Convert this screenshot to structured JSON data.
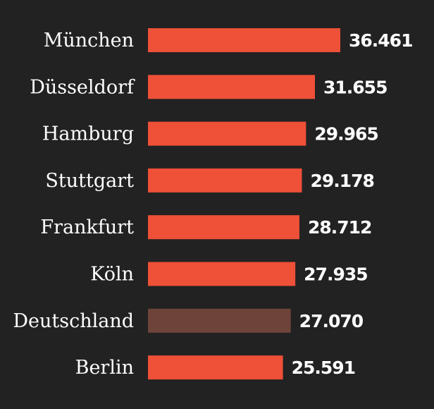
{
  "chart_data": {
    "type": "bar",
    "orientation": "horizontal",
    "categories": [
      "München",
      "Düsseldorf",
      "Hamburg",
      "Stuttgart",
      "Frankfurt",
      "Köln",
      "Deutschland",
      "Berlin"
    ],
    "values": [
      36461,
      31655,
      29965,
      29178,
      28712,
      27935,
      27070,
      25591
    ],
    "value_labels": [
      "36.461",
      "31.655",
      "29.965",
      "29.178",
      "28.712",
      "27.935",
      "27.070",
      "25.591"
    ],
    "highlight": "Deutschland",
    "xlim": [
      0,
      36461
    ],
    "grid": false,
    "colors": {
      "bar": "#ee5038",
      "highlight": "#6e443a",
      "background": "#222222",
      "text": "#ffffff"
    }
  }
}
